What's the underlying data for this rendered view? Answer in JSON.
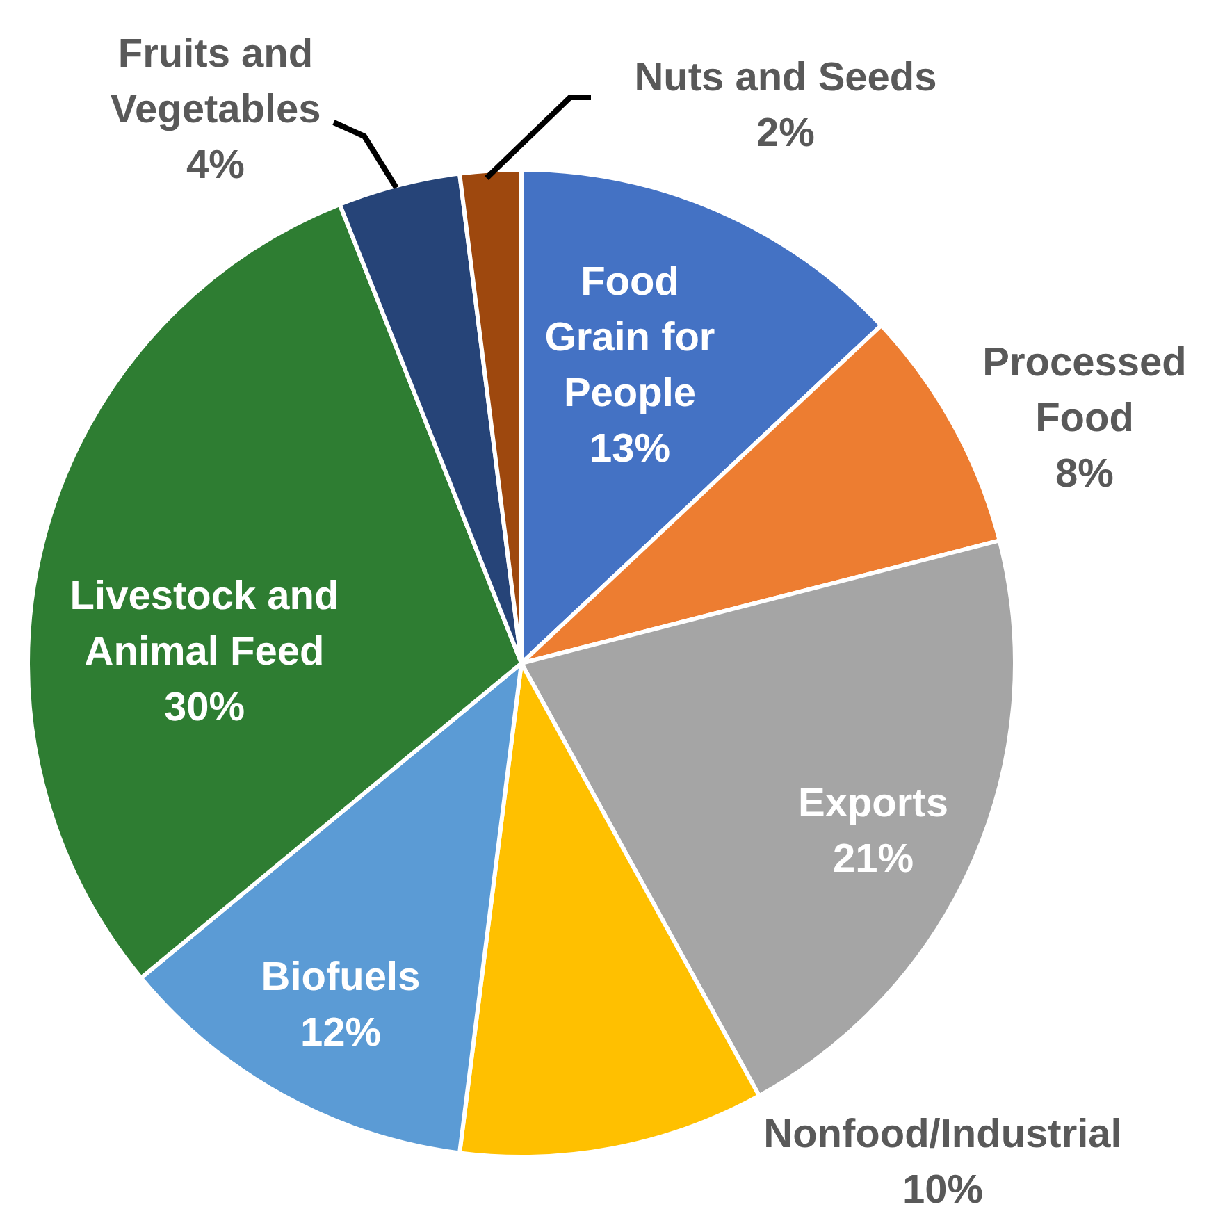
{
  "chart_data": {
    "type": "pie",
    "categories": [
      "Food Grain for People",
      "Processed Food",
      "Exports",
      "Nonfood/Industrial",
      "Biofuels",
      "Livestock and Animal Feed",
      "Fruits and Vegetables",
      "Nuts and Seeds"
    ],
    "values": [
      13,
      8,
      21,
      10,
      12,
      30,
      4,
      2
    ],
    "value_labels": [
      "13%",
      "8%",
      "21%",
      "10%",
      "12%",
      "30%",
      "4%",
      "2%"
    ],
    "colors": [
      "#4472c4",
      "#ed7d31",
      "#a5a5a5",
      "#ffc000",
      "#5b9bd5",
      "#2e7d32",
      "#264478",
      "#9e480e"
    ]
  }
}
